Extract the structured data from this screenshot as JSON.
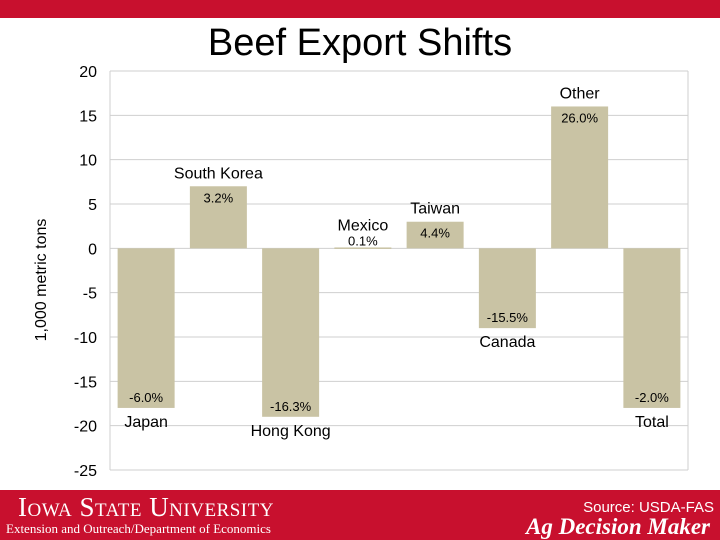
{
  "chart_data": {
    "type": "bar",
    "title": "Beef Export Shifts",
    "ylabel": "1,000 metric tons",
    "ylim": [
      -25,
      20
    ],
    "yticks": [
      20,
      15,
      10,
      5,
      0,
      -5,
      -10,
      -15,
      -20,
      -25
    ],
    "categories": [
      "Japan",
      "South Korea",
      "Hong Kong",
      "Mexico",
      "Taiwan",
      "Canada",
      "Other",
      "Total"
    ],
    "values": [
      -18.0,
      7.0,
      -19.0,
      0.1,
      3.0,
      -9.0,
      16.0,
      -18.0
    ],
    "pct_labels": [
      "-6.0%",
      "3.2%",
      "-16.3%",
      "0.1%",
      "4.4%",
      "-15.5%",
      "26.0%",
      "-2.0%"
    ],
    "bar_color": "#c9c3a4",
    "grid": true
  },
  "footer": {
    "university": "Iowa State University",
    "department": "Extension and Outreach/Department of Economics",
    "source": "Source: USDA-FAS",
    "program": "Ag Decision Maker"
  },
  "colors": {
    "brand": "#c8102e",
    "bar": "#c9c3a4"
  }
}
